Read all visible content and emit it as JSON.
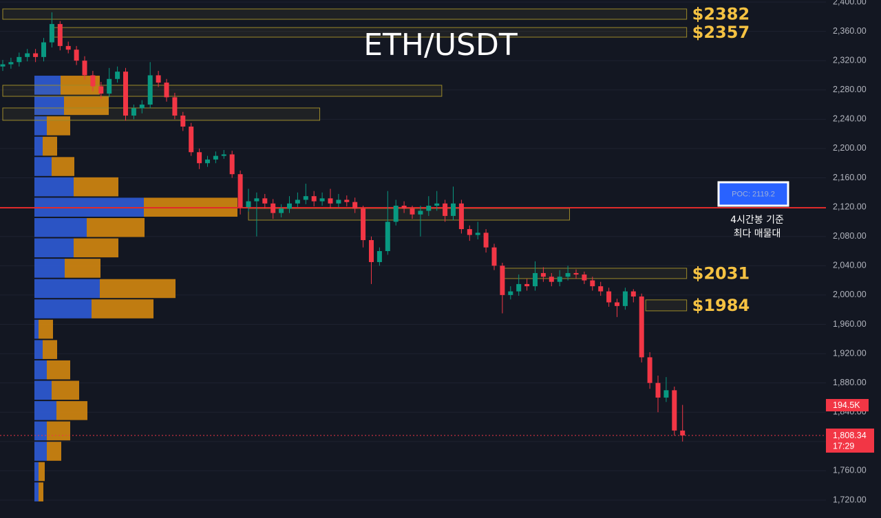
{
  "chart_data": {
    "type": "candlestick",
    "title": "ETH/USDT",
    "ylim": [
      1695.6,
      2402.8
    ],
    "yticks": [
      {
        "value": 1720,
        "label": "1,720.00"
      },
      {
        "value": 1760,
        "label": "1,760.00"
      },
      {
        "value": 1800,
        "label": "1,800.00"
      },
      {
        "value": 1840,
        "label": "1,840.00"
      },
      {
        "value": 1880,
        "label": "1,880.00"
      },
      {
        "value": 1920,
        "label": "1,920.00"
      },
      {
        "value": 1960,
        "label": "1,960.00"
      },
      {
        "value": 2000,
        "label": "2,000.00"
      },
      {
        "value": 2040,
        "label": "2,040.00"
      },
      {
        "value": 2080,
        "label": "2,080.00"
      },
      {
        "value": 2120,
        "label": "2,120.00"
      },
      {
        "value": 2160,
        "label": "2,160.00"
      },
      {
        "value": 2200,
        "label": "2,200.00"
      },
      {
        "value": 2240,
        "label": "2,240.00"
      },
      {
        "value": 2280,
        "label": "2,280.00"
      },
      {
        "value": 2320,
        "label": "2,320.00"
      },
      {
        "value": 2360,
        "label": "2,360.00"
      },
      {
        "value": 2400,
        "label": "2,400.00"
      }
    ],
    "grid": true,
    "up_color": "#089981",
    "down_color": "#f23645",
    "open": [
      2312,
      2315,
      2318,
      2325,
      2330,
      2325,
      2345,
      2370,
      2340,
      2335,
      2320,
      2300,
      2285,
      2275,
      2295,
      2305,
      2245,
      2255,
      2260,
      2300,
      2290,
      2270,
      2245,
      2230,
      2195,
      2180,
      2185,
      2190,
      2192,
      2165,
      2120,
      2128,
      2132,
      2125,
      2112,
      2118,
      2125,
      2130,
      2135,
      2128,
      2132,
      2125,
      2130,
      2127,
      2118,
      2075,
      2045,
      2060,
      2100,
      2122,
      2118,
      2110,
      2115,
      2122,
      2125,
      2108,
      2125,
      2090,
      2082,
      2085,
      2065,
      2040,
      2000,
      2005,
      2015,
      2012,
      2030,
      2025,
      2018,
      2025,
      2030,
      2028,
      2020,
      2012,
      2005,
      1990,
      1985,
      2005,
      1998,
      1915,
      1880,
      1860,
      1870,
      1815
    ],
    "high": [
      2321,
      2324,
      2331,
      2336,
      2336,
      2351,
      2386,
      2374,
      2346,
      2340,
      2326,
      2306,
      2291,
      2310,
      2312,
      2310,
      2260,
      2266,
      2318,
      2306,
      2295,
      2276,
      2250,
      2235,
      2200,
      2190,
      2196,
      2198,
      2197,
      2170,
      2145,
      2140,
      2138,
      2131,
      2124,
      2135,
      2140,
      2152,
      2142,
      2140,
      2145,
      2138,
      2136,
      2133,
      2122,
      2080,
      2065,
      2142,
      2130,
      2128,
      2122,
      2122,
      2135,
      2142,
      2130,
      2148,
      2130,
      2095,
      2100,
      2090,
      2070,
      2044,
      2012,
      2028,
      2022,
      2046,
      2038,
      2030,
      2034,
      2040,
      2035,
      2032,
      2025,
      2018,
      2010,
      1995,
      2010,
      2008,
      2002,
      1922,
      1890,
      1888,
      1875,
      1850
    ],
    "low": [
      2306,
      2309,
      2312,
      2319,
      2318,
      2319,
      2338,
      2334,
      2330,
      2314,
      2294,
      2278,
      2268,
      2270,
      2290,
      2238,
      2240,
      2248,
      2255,
      2284,
      2264,
      2240,
      2224,
      2190,
      2172,
      2175,
      2180,
      2186,
      2160,
      2110,
      2114,
      2080,
      2118,
      2104,
      2106,
      2112,
      2120,
      2124,
      2121,
      2122,
      2118,
      2120,
      2121,
      2112,
      2065,
      2015,
      2040,
      2055,
      2095,
      2112,
      2104,
      2080,
      2108,
      2115,
      2100,
      2102,
      2084,
      2074,
      2076,
      2058,
      2034,
      1975,
      1994,
      1999,
      2006,
      2006,
      2018,
      2012,
      2012,
      2020,
      2022,
      2015,
      2006,
      1999,
      1984,
      1970,
      1980,
      1990,
      1908,
      1872,
      1840,
      1854,
      1808,
      1800
    ],
    "close": [
      2315,
      2318,
      2325,
      2330,
      2325,
      2345,
      2370,
      2340,
      2335,
      2320,
      2300,
      2285,
      2275,
      2295,
      2305,
      2245,
      2255,
      2260,
      2300,
      2290,
      2270,
      2245,
      2230,
      2195,
      2180,
      2185,
      2190,
      2192,
      2165,
      2120,
      2128,
      2132,
      2125,
      2112,
      2118,
      2125,
      2130,
      2135,
      2128,
      2132,
      2125,
      2130,
      2127,
      2118,
      2075,
      2045,
      2060,
      2100,
      2122,
      2118,
      2110,
      2115,
      2122,
      2125,
      2108,
      2125,
      2090,
      2082,
      2085,
      2065,
      2040,
      2000,
      2005,
      2015,
      2012,
      2030,
      2025,
      2018,
      2025,
      2030,
      2028,
      2020,
      2012,
      2005,
      1990,
      1985,
      2005,
      1998,
      1915,
      1880,
      1860,
      1870,
      1815,
      1808.34
    ],
    "zones": [
      {
        "low": 2376.5,
        "high": 2390.6,
        "start": 0,
        "end": 83.5,
        "label": "$2382"
      },
      {
        "low": 2352.1,
        "high": 2365.2,
        "start": 6,
        "end": 83.5,
        "label": "$2357"
      },
      {
        "low": 2271.3,
        "high": 2286.4,
        "start": 0,
        "end": 53.6
      },
      {
        "low": 2238.5,
        "high": 2255.4,
        "start": 0,
        "end": 38.7
      },
      {
        "low": 2102.3,
        "high": 2118.3,
        "start": 30,
        "end": 69.2
      },
      {
        "low": 2022.5,
        "high": 2036.6,
        "start": 61,
        "end": 83.5,
        "label": "$2031"
      },
      {
        "low": 1978.4,
        "high": 1993.4,
        "start": 78.5,
        "end": 83.5,
        "label": "$1984"
      }
    ],
    "volume_profile": {
      "bins": [
        2300.4,
        2272.6,
        2244.9,
        2217.1,
        2189.3,
        2161.6,
        2133.8,
        2106.0,
        2078.3,
        2050.5,
        2022.7,
        1995.0,
        1967.2,
        1939.4,
        1911.7,
        1883.9,
        1856.1,
        1828.4,
        1800.6,
        1772.8,
        1745.1,
        1717.3
      ],
      "buy": [
        38,
        43,
        18,
        12,
        25,
        57,
        159,
        76,
        57,
        44,
        95,
        83,
        6,
        12,
        18,
        25,
        32,
        18,
        18,
        6,
        6
      ],
      "sell": [
        57,
        65,
        34,
        21,
        33,
        65,
        136,
        84,
        65,
        52,
        110,
        90,
        21,
        21,
        34,
        40,
        45,
        34,
        21,
        9,
        7
      ],
      "buy_color": "#2f5bd6",
      "sell_color": "#d4870f"
    },
    "poc": {
      "value": 2119.2,
      "label": "POC: 2119.2",
      "color": "#e02a2a"
    },
    "annotation": [
      "4시간봉 기준",
      "최다 매물대"
    ],
    "last_price": {
      "value": 1808.34,
      "label": "1,808.34"
    },
    "countdown": "17:29",
    "volume_tag": "194.5K"
  }
}
